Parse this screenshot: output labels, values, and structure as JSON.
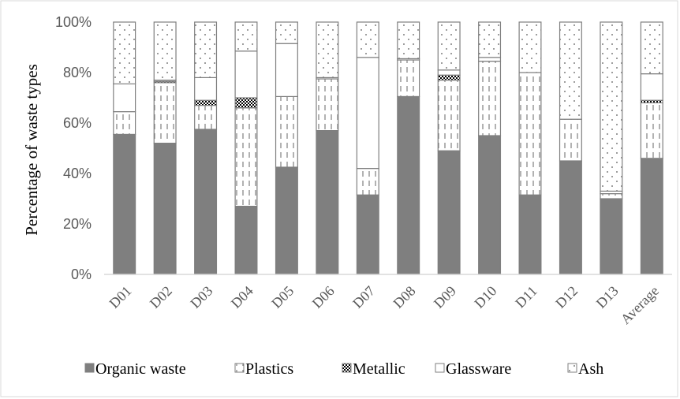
{
  "chart_data": {
    "type": "bar",
    "stacked": true,
    "categories": [
      "D01",
      "D02",
      "D03",
      "D04",
      "D05",
      "D06",
      "D07",
      "D08",
      "D09",
      "D10",
      "D11",
      "D12",
      "D13",
      "Average"
    ],
    "series": [
      {
        "name": "Organic waste",
        "values": [
          55.5,
          52,
          57.5,
          27,
          42.5,
          57,
          31.5,
          70.5,
          49,
          55,
          31.5,
          45,
          30,
          46
        ],
        "pattern": "solid",
        "color": "#7f7f7f"
      },
      {
        "name": "Plastics",
        "values": [
          9,
          24,
          9.5,
          39,
          28,
          20.5,
          10.5,
          14.5,
          28,
          29.5,
          48.5,
          16.5,
          2,
          22
        ],
        "pattern": "dashed",
        "color": "#7f7f7f"
      },
      {
        "name": "Metallic",
        "values": [
          0,
          0.5,
          2,
          4,
          0,
          0,
          0,
          0,
          2,
          0,
          0,
          0,
          0,
          1
        ],
        "pattern": "checker",
        "color": "#000000"
      },
      {
        "name": "Glassware",
        "values": [
          11,
          0.5,
          9,
          18.5,
          21,
          0.5,
          44,
          0.5,
          2,
          1.5,
          0,
          0,
          1,
          10.5
        ],
        "pattern": "white",
        "color": "#7f7f7f"
      },
      {
        "name": "Ash",
        "values": [
          24.5,
          23,
          22,
          11.5,
          8.5,
          22,
          14,
          14.5,
          19,
          14,
          20,
          38.5,
          67,
          20.5
        ],
        "pattern": "dotted",
        "color": "#7f7f7f"
      }
    ],
    "ylabel": "Percentage of waste types",
    "xlabel": "",
    "ylim": [
      0,
      100
    ],
    "yticks": [
      "0%",
      "20%",
      "40%",
      "60%",
      "80%",
      "100%"
    ],
    "legend_position": "bottom",
    "grid": false
  }
}
